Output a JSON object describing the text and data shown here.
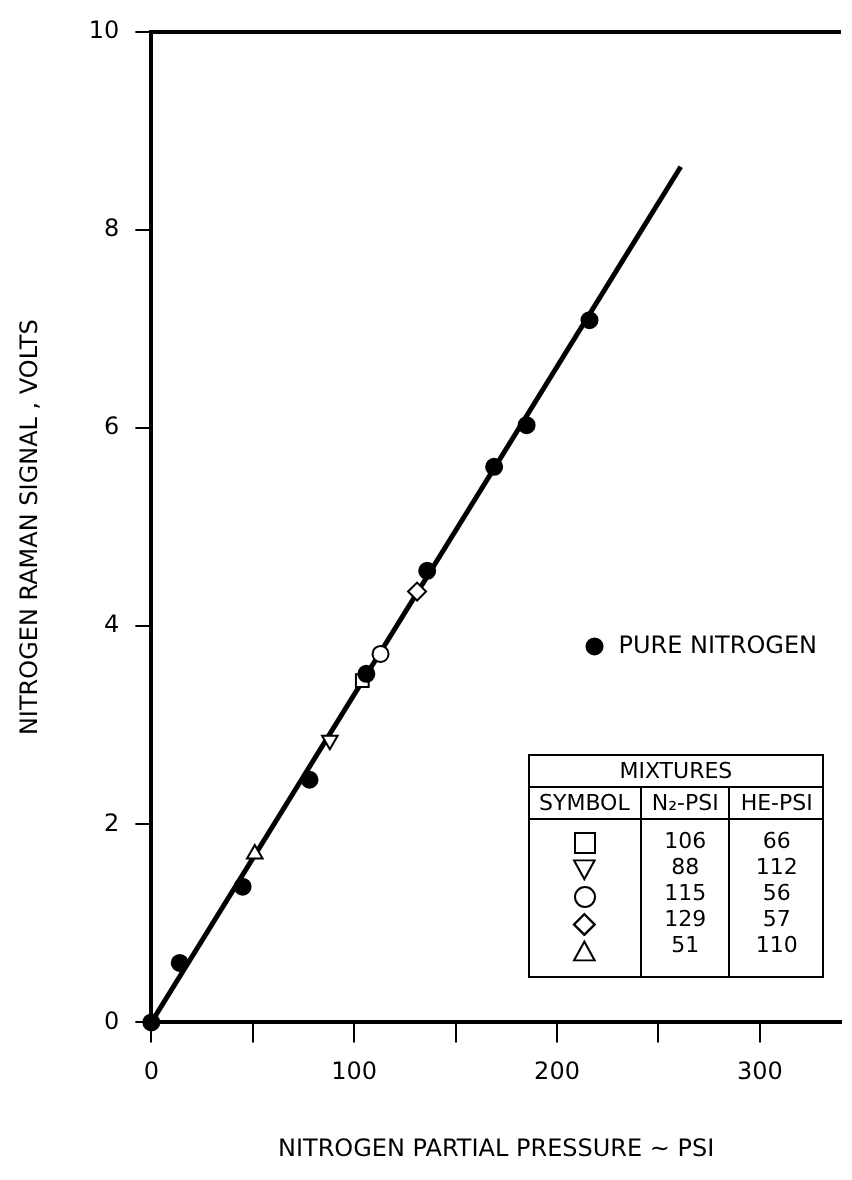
{
  "chart_data": {
    "type": "scatter",
    "xlabel": "NITROGEN PARTIAL PRESSURE ~ PSI",
    "ylabel": "NITROGEN RAMAN SIGNAL , VOLTS",
    "xlim": [
      0,
      340
    ],
    "xticks": [
      0,
      {
        "value": 50,
        "label": null
      },
      100,
      {
        "value": 150,
        "label": null
      },
      200,
      {
        "value": 250,
        "label": null
      },
      300
    ],
    "ylim": [
      0,
      10
    ],
    "yticks": [
      0,
      2,
      4,
      6,
      8,
      10
    ],
    "grid": false,
    "legend": "bottom right",
    "series": [
      {
        "name": "PURE NITROGEN",
        "color": "#000000",
        "marker": "circle",
        "x": [
          0,
          14,
          45,
          78,
          106,
          136,
          169,
          185,
          216
        ],
        "values": [
          0,
          0.6,
          1.37,
          2.45,
          3.52,
          4.56,
          5.61,
          6.03,
          7.09
        ]
      },
      {
        "color": "#000000",
        "marker": "square",
        "x": [
          104
        ],
        "values": [
          3.45
        ]
      },
      {
        "color": "#000000",
        "marker": "triangle-down",
        "x": [
          88
        ],
        "values": [
          2.85
        ]
      },
      {
        "color": "#000000",
        "marker": "circle",
        "x": [
          113
        ],
        "values": [
          3.72
        ]
      },
      {
        "color": "#000000",
        "marker": "diamond",
        "x": [
          131
        ],
        "values": [
          4.35
        ]
      },
      {
        "color": "#000000",
        "marker": "triangle",
        "x": [
          51
        ],
        "values": [
          1.7
        ]
      },
      {
        "type": "line",
        "color": "#000000",
        "marker": "none",
        "x": [
          0,
          261
        ],
        "values": [
          0,
          8.64
        ]
      }
    ],
    "annotations": [
      "MIXTURES",
      "SYMBOL",
      "N₂-PSI",
      "HE-PSI",
      "106",
      "66",
      "88",
      "112",
      "115",
      "56",
      "129",
      "57",
      "51",
      "110"
    ]
  }
}
